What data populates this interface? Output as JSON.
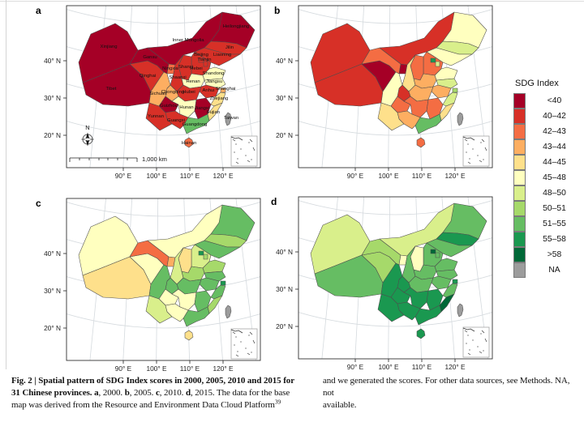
{
  "panels": [
    {
      "letter": "a",
      "year": "2000"
    },
    {
      "letter": "b",
      "year": "2005"
    },
    {
      "letter": "c",
      "year": "2010"
    },
    {
      "letter": "d",
      "year": "2015"
    }
  ],
  "axes": {
    "x_ticks": [
      "90° E",
      "100° E",
      "110° E",
      "120° E"
    ],
    "y_ticks": [
      "40° N",
      "30° N",
      "20° N"
    ]
  },
  "map_annotations": {
    "north_label": "N",
    "scale_label": "1,000 km"
  },
  "legend": {
    "title": "SDG Index",
    "entries": [
      {
        "label": "<40",
        "color": "#A50026"
      },
      {
        "label": "40–42",
        "color": "#D73027"
      },
      {
        "label": "42–43",
        "color": "#F46D43"
      },
      {
        "label": "43–44",
        "color": "#FDAE61"
      },
      {
        "label": "44–45",
        "color": "#FEE08B"
      },
      {
        "label": "45–48",
        "color": "#FFFFBF"
      },
      {
        "label": "48–50",
        "color": "#D9EF8B"
      },
      {
        "label": "50–51",
        "color": "#A6D96A"
      },
      {
        "label": "51–55",
        "color": "#66BD63"
      },
      {
        "label": "55–58",
        "color": "#1A9850"
      },
      {
        "label": ">58",
        "color": "#006837"
      },
      {
        "label": "NA",
        "color": "#9C9C9C"
      }
    ]
  },
  "caption": {
    "left_lines": [
      [
        {
          "t": "Fig. 2 | Spatial pattern of SDG Index scores in 2000, 2005, 2010 and 2015 for",
          "b": true
        }
      ],
      [
        {
          "t": "31 Chinese provinces. ",
          "b": true
        },
        {
          "t": "a",
          "b": true
        },
        {
          "t": ", 2000. ",
          "b": false
        },
        {
          "t": "b",
          "b": true
        },
        {
          "t": ", 2005. ",
          "b": false
        },
        {
          "t": "c",
          "b": true
        },
        {
          "t": ", 2010. ",
          "b": false
        },
        {
          "t": "d",
          "b": true
        },
        {
          "t": ", 2015. The data for the base",
          "b": false
        }
      ],
      [
        {
          "t": "map was derived from the Resource and Environment Data Cloud Platform",
          "b": false
        },
        {
          "t": "39",
          "sup": true
        }
      ]
    ],
    "right_lines": [
      [
        {
          "t": "and we generated the scores. For other data sources, see Methods. NA, not",
          "b": false
        }
      ],
      [
        {
          "t": "available.",
          "b": false
        }
      ]
    ]
  },
  "chart_data": {
    "type": "choropleth",
    "region": "China, 31 provinces (Taiwan shown as NA)",
    "unit": "SDG Index score class",
    "years": [
      "2000",
      "2005",
      "2010",
      "2015"
    ],
    "provinces": [
      {
        "name": "Xinjiang",
        "scores": {
          "2000": "<40",
          "2005": "40–42",
          "2010": "45–48",
          "2015": "48–50"
        }
      },
      {
        "name": "Tibet",
        "scores": {
          "2000": "<40",
          "2005": "40–42",
          "2010": "44–45",
          "2015": "51–55"
        }
      },
      {
        "name": "Qinghai",
        "scores": {
          "2000": "40–42",
          "2005": "<40",
          "2010": "45–48",
          "2015": "50–51"
        }
      },
      {
        "name": "Gansu",
        "scores": {
          "2000": "<40",
          "2005": "42–43",
          "2010": "42–43",
          "2015": "50–51"
        }
      },
      {
        "name": "Ningxia",
        "scores": {
          "2000": "42–43",
          "2005": "<40",
          "2010": "43–44",
          "2015": "45–48"
        }
      },
      {
        "name": "Inner Mongolia",
        "scores": {
          "2000": "<40",
          "2005": "40–42",
          "2010": "45–48",
          "2015": "48–50"
        }
      },
      {
        "name": "Heilongjiang",
        "scores": {
          "2000": "<40",
          "2005": "45–48",
          "2010": "51–55",
          "2015": "51–55"
        }
      },
      {
        "name": "Jilin",
        "scores": {
          "2000": "40–42",
          "2005": "48–50",
          "2010": "50–51",
          "2015": "55–58"
        }
      },
      {
        "name": "Liaoning",
        "scores": {
          "2000": "40–42",
          "2005": "45–48",
          "2010": "51–55",
          "2015": "51–55"
        }
      },
      {
        "name": "Hebei",
        "scores": {
          "2000": "40–42",
          "2005": "42–43",
          "2010": "48–50",
          "2015": "51–55"
        }
      },
      {
        "name": "Shanxi",
        "scores": {
          "2000": "40–42",
          "2005": "42–43",
          "2010": "44–45",
          "2015": "45–48"
        }
      },
      {
        "name": "Shaanxi",
        "scores": {
          "2000": "40–42",
          "2005": "44–45",
          "2010": "48–50",
          "2015": "51–55"
        }
      },
      {
        "name": "Shandong",
        "scores": {
          "2000": "45–48",
          "2005": "45–48",
          "2010": "50–51",
          "2015": "51–55"
        }
      },
      {
        "name": "Henan",
        "scores": {
          "2000": "45–48",
          "2005": "43–44",
          "2010": "50–51",
          "2015": "51–55"
        }
      },
      {
        "name": "Jiangsu",
        "scores": {
          "2000": "45–48",
          "2005": "48–50",
          "2010": "51–55",
          "2015": "51–55"
        }
      },
      {
        "name": "Anhui",
        "scores": {
          "2000": "40–42",
          "2005": "43–44",
          "2010": "51–55",
          "2015": "51–55"
        }
      },
      {
        "name": "Hubei",
        "scores": {
          "2000": "40–42",
          "2005": "43–44",
          "2010": "51–55",
          "2015": "51–55"
        }
      },
      {
        "name": "Chongqing",
        "scores": {
          "2000": "43–44",
          "2005": "40–42",
          "2010": "51–55",
          "2015": "55–58"
        }
      },
      {
        "name": "Sichuan",
        "scores": {
          "2000": "43–44",
          "2005": "45–48",
          "2010": "51–55",
          "2015": "55–58"
        }
      },
      {
        "name": "Guizhou",
        "scores": {
          "2000": "<40",
          "2005": "42–43",
          "2010": "45–48",
          "2015": "55–58"
        }
      },
      {
        "name": "Hunan",
        "scores": {
          "2000": "45–48",
          "2005": "42–43",
          "2010": "45–48",
          "2015": "55–58"
        }
      },
      {
        "name": "Jiangxi",
        "scores": {
          "2000": "<40",
          "2005": "42–43",
          "2010": "51–55",
          "2015": "55–58"
        }
      },
      {
        "name": "Zhejiang",
        "scores": {
          "2000": "44–45",
          "2005": "48–50",
          "2010": "51–55",
          "2015": "51–55"
        }
      },
      {
        "name": "Fujian",
        "scores": {
          "2000": "44–45",
          "2005": "44–45",
          "2010": "50–51",
          "2015": ">58"
        }
      },
      {
        "name": "Guangdong",
        "scores": {
          "2000": "51–55",
          "2005": "51–55",
          "2010": "51–55",
          "2015": "55–58"
        }
      },
      {
        "name": "Guangxi",
        "scores": {
          "2000": "40–42",
          "2005": "43–44",
          "2010": "45–48",
          "2015": "55–58"
        }
      },
      {
        "name": "Yunnan",
        "scores": {
          "2000": "40–42",
          "2005": "44–45",
          "2010": "48–50",
          "2015": "55–58"
        }
      },
      {
        "name": "Hainan",
        "scores": {
          "2000": "42–43",
          "2005": "42–43",
          "2010": "44–45",
          "2015": "55–58"
        }
      },
      {
        "name": "Beijing",
        "scores": {
          "2000": "40–42",
          "2005": "55–58",
          "2010": "55–58",
          "2015": ">58"
        }
      },
      {
        "name": "Tianjin",
        "scores": {
          "2000": "40–42",
          "2005": "48–50",
          "2010": "50–51",
          "2015": "51–55"
        }
      },
      {
        "name": "Shanghai",
        "scores": {
          "2000": "43–44",
          "2005": "50–51",
          "2010": "55–58",
          "2015": "55–58"
        }
      },
      {
        "name": "Taiwan",
        "scores": {
          "2000": "NA",
          "2005": "NA",
          "2010": "NA",
          "2015": "NA"
        }
      }
    ]
  }
}
